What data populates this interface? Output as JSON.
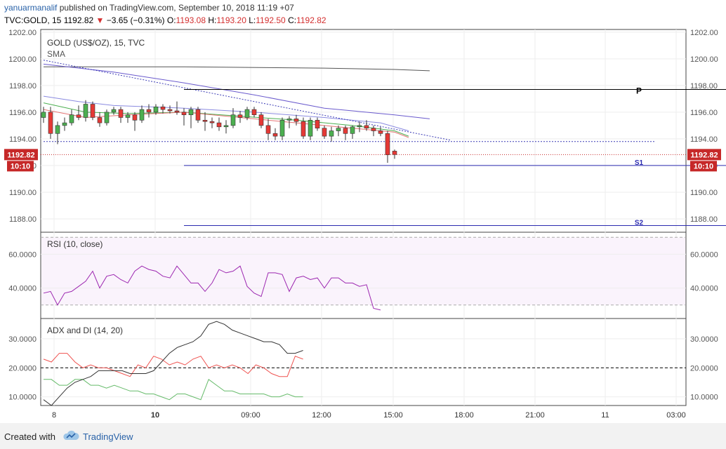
{
  "header": {
    "author": "yanuarmanalif",
    "published": "published on TradingView.com, September 10, 2018 11:19 +07",
    "symbol": "TVC:GOLD, 15",
    "last": "1192.82",
    "change": "−3.65 (−0.31%)",
    "o_label": "O:",
    "o": "1193.08",
    "h_label": "H:",
    "h": "1193.20",
    "l_label": "L:",
    "l": "1192.50",
    "c_label": "C:",
    "c": "1192.82"
  },
  "footer": {
    "created": "Created with",
    "brand": "TradingView"
  },
  "colors": {
    "up": "#4caf50",
    "down": "#e53935",
    "pivot": "#000000",
    "support": "#2b2bb0",
    "rsi": "#9c27b0",
    "adx": "#333333",
    "di_plus": "#66bb6a",
    "di_minus": "#ef5350",
    "price_label": "#c62828"
  },
  "chart_data": {
    "type": "candlestick",
    "title": "GOLD (US$/OZ), 15, TVC",
    "indicator_label": "SMA",
    "y_ticks": [
      "1202.00",
      "1200.00",
      "1198.00",
      "1196.00",
      "1194.00",
      "1192.00",
      "1190.00",
      "1188.00"
    ],
    "ylim": [
      1187.0,
      1202.2
    ],
    "x_ticks": [
      "8",
      "10",
      "09:00",
      "12:00",
      "15:00",
      "18:00",
      "21:00",
      "11",
      "03:00"
    ],
    "last_price": 1192.82,
    "last_price_label": "1192.82",
    "countdown": "10:10",
    "candles": [
      {
        "o": 1195.6,
        "h": 1196.4,
        "l": 1195.2,
        "c": 1196.0
      },
      {
        "o": 1196.0,
        "h": 1196.4,
        "l": 1194.0,
        "c": 1194.4
      },
      {
        "o": 1194.4,
        "h": 1195.3,
        "l": 1193.6,
        "c": 1195.0
      },
      {
        "o": 1195.0,
        "h": 1195.6,
        "l": 1194.6,
        "c": 1195.2
      },
      {
        "o": 1195.2,
        "h": 1196.2,
        "l": 1195.0,
        "c": 1195.8
      },
      {
        "o": 1195.8,
        "h": 1196.5,
        "l": 1195.4,
        "c": 1195.6
      },
      {
        "o": 1195.6,
        "h": 1196.9,
        "l": 1195.3,
        "c": 1196.6
      },
      {
        "o": 1196.6,
        "h": 1196.8,
        "l": 1195.4,
        "c": 1195.6
      },
      {
        "o": 1195.6,
        "h": 1196.0,
        "l": 1194.9,
        "c": 1195.2
      },
      {
        "o": 1195.2,
        "h": 1196.2,
        "l": 1195.0,
        "c": 1196.0
      },
      {
        "o": 1196.0,
        "h": 1196.4,
        "l": 1195.8,
        "c": 1196.2
      },
      {
        "o": 1196.2,
        "h": 1196.4,
        "l": 1195.2,
        "c": 1195.6
      },
      {
        "o": 1195.6,
        "h": 1196.0,
        "l": 1195.2,
        "c": 1195.8
      },
      {
        "o": 1195.8,
        "h": 1196.0,
        "l": 1194.6,
        "c": 1195.4
      },
      {
        "o": 1195.4,
        "h": 1196.5,
        "l": 1195.2,
        "c": 1196.2
      },
      {
        "o": 1196.2,
        "h": 1196.6,
        "l": 1195.6,
        "c": 1196.0
      },
      {
        "o": 1196.0,
        "h": 1196.6,
        "l": 1195.8,
        "c": 1196.4
      },
      {
        "o": 1196.4,
        "h": 1196.6,
        "l": 1195.9,
        "c": 1196.2
      },
      {
        "o": 1196.2,
        "h": 1196.5,
        "l": 1195.9,
        "c": 1196.1
      },
      {
        "o": 1196.1,
        "h": 1196.8,
        "l": 1195.8,
        "c": 1196.0
      },
      {
        "o": 1196.0,
        "h": 1196.3,
        "l": 1195.0,
        "c": 1195.8
      },
      {
        "o": 1195.8,
        "h": 1196.4,
        "l": 1194.8,
        "c": 1196.2
      },
      {
        "o": 1196.2,
        "h": 1196.4,
        "l": 1195.2,
        "c": 1195.4
      },
      {
        "o": 1195.4,
        "h": 1196.0,
        "l": 1194.6,
        "c": 1195.3
      },
      {
        "o": 1195.3,
        "h": 1195.6,
        "l": 1194.8,
        "c": 1195.2
      },
      {
        "o": 1195.2,
        "h": 1195.6,
        "l": 1194.6,
        "c": 1194.9
      },
      {
        "o": 1194.9,
        "h": 1195.4,
        "l": 1194.4,
        "c": 1195.0
      },
      {
        "o": 1195.0,
        "h": 1196.3,
        "l": 1194.8,
        "c": 1195.8
      },
      {
        "o": 1195.8,
        "h": 1196.1,
        "l": 1195.2,
        "c": 1195.6
      },
      {
        "o": 1195.6,
        "h": 1196.4,
        "l": 1195.4,
        "c": 1196.2
      },
      {
        "o": 1196.2,
        "h": 1196.4,
        "l": 1195.6,
        "c": 1195.8
      },
      {
        "o": 1195.8,
        "h": 1196.0,
        "l": 1194.8,
        "c": 1195.0
      },
      {
        "o": 1195.0,
        "h": 1195.5,
        "l": 1193.9,
        "c": 1194.4
      },
      {
        "o": 1194.4,
        "h": 1194.8,
        "l": 1193.9,
        "c": 1194.2
      },
      {
        "o": 1194.2,
        "h": 1195.6,
        "l": 1193.9,
        "c": 1195.4
      },
      {
        "o": 1195.4,
        "h": 1195.7,
        "l": 1194.8,
        "c": 1195.5
      },
      {
        "o": 1195.5,
        "h": 1195.8,
        "l": 1195.0,
        "c": 1195.3
      },
      {
        "o": 1195.3,
        "h": 1195.6,
        "l": 1194.0,
        "c": 1194.2
      },
      {
        "o": 1194.2,
        "h": 1195.6,
        "l": 1193.9,
        "c": 1195.4
      },
      {
        "o": 1195.4,
        "h": 1195.6,
        "l": 1194.6,
        "c": 1194.8
      },
      {
        "o": 1194.8,
        "h": 1195.0,
        "l": 1194.0,
        "c": 1194.2
      },
      {
        "o": 1194.2,
        "h": 1194.9,
        "l": 1193.8,
        "c": 1194.6
      },
      {
        "o": 1194.6,
        "h": 1195.0,
        "l": 1194.2,
        "c": 1194.8
      },
      {
        "o": 1194.8,
        "h": 1195.0,
        "l": 1193.9,
        "c": 1194.4
      },
      {
        "o": 1194.4,
        "h": 1195.0,
        "l": 1194.0,
        "c": 1194.9
      },
      {
        "o": 1194.9,
        "h": 1195.3,
        "l": 1194.5,
        "c": 1195.0
      },
      {
        "o": 1195.0,
        "h": 1195.4,
        "l": 1194.6,
        "c": 1194.8
      },
      {
        "o": 1194.8,
        "h": 1195.0,
        "l": 1194.2,
        "c": 1194.6
      },
      {
        "o": 1194.6,
        "h": 1194.9,
        "l": 1194.2,
        "c": 1194.4
      },
      {
        "o": 1194.4,
        "h": 1194.6,
        "l": 1192.2,
        "c": 1192.8
      },
      {
        "o": 1193.08,
        "h": 1193.2,
        "l": 1192.5,
        "c": 1192.82
      }
    ],
    "sma": [
      {
        "color": "#555555",
        "points": [
          [
            0,
            1199.4
          ],
          [
            20,
            1199.4
          ],
          [
            40,
            1199.3
          ],
          [
            50,
            1199.2
          ],
          [
            55,
            1199.1
          ]
        ]
      },
      {
        "color": "#6a5acd",
        "points": [
          [
            0,
            1199.6
          ],
          [
            10,
            1199.0
          ],
          [
            20,
            1198.2
          ],
          [
            30,
            1197.3
          ],
          [
            40,
            1196.3
          ],
          [
            50,
            1195.8
          ],
          [
            55,
            1195.5
          ]
        ]
      },
      {
        "color": "#8a8ae0",
        "points": [
          [
            0,
            1197.2
          ],
          [
            5,
            1196.8
          ],
          [
            10,
            1196.5
          ],
          [
            20,
            1196.3
          ],
          [
            30,
            1196.0
          ],
          [
            40,
            1195.6
          ],
          [
            48,
            1195.2
          ],
          [
            52,
            1194.6
          ]
        ]
      },
      {
        "color": "#4caf50",
        "points": [
          [
            0,
            1196.7
          ],
          [
            6,
            1196.0
          ],
          [
            12,
            1195.9
          ],
          [
            20,
            1196.0
          ],
          [
            28,
            1195.7
          ],
          [
            36,
            1195.4
          ],
          [
            44,
            1195.0
          ],
          [
            50,
            1194.6
          ],
          [
            52,
            1194.2
          ]
        ]
      },
      {
        "color": "#e57373",
        "points": [
          [
            0,
            1196.2
          ],
          [
            6,
            1195.6
          ],
          [
            12,
            1195.8
          ],
          [
            20,
            1196.0
          ],
          [
            28,
            1195.6
          ],
          [
            36,
            1195.2
          ],
          [
            44,
            1194.8
          ],
          [
            50,
            1194.5
          ],
          [
            52,
            1194.1
          ]
        ]
      }
    ],
    "trendline": {
      "x": [
        0,
        58
      ],
      "y": [
        1199.9,
        1193.9
      ]
    },
    "horizontal_lines": [
      {
        "label": "P",
        "value": 1197.7,
        "x": [
          20,
          100
        ]
      },
      {
        "label": "S1",
        "value": 1192.0,
        "x": [
          20,
          100
        ]
      },
      {
        "label": "S2",
        "value": 1187.5,
        "x": [
          20,
          100
        ]
      },
      {
        "label": "",
        "value": 1193.8,
        "x": [
          0,
          87
        ],
        "dotted": true
      }
    ],
    "rsi": {
      "label": "RSI (10, close)",
      "y_ticks": [
        "60.0000",
        "40.0000"
      ],
      "ylim": [
        22,
        73
      ],
      "bands": [
        70,
        30
      ],
      "values": [
        37,
        38,
        30,
        37,
        38,
        41,
        44,
        50,
        40,
        47,
        48,
        45,
        43,
        50,
        53,
        51,
        50,
        47,
        46,
        53,
        48,
        43,
        43,
        38,
        43,
        51,
        49,
        50,
        53,
        41,
        37,
        35,
        49,
        49,
        48,
        38,
        46,
        47,
        45,
        46,
        40,
        46,
        46,
        43,
        43,
        41,
        42,
        28,
        27
      ]
    },
    "adx": {
      "label": "ADX and DI (14, 20)",
      "y_ticks": [
        "30.0000",
        "20.0000",
        "10.0000"
      ],
      "ylim": [
        7,
        37
      ],
      "reference": 20,
      "adx": [
        9,
        7,
        10,
        13,
        15,
        16,
        17,
        19,
        19,
        19,
        19,
        18,
        18,
        18,
        19,
        22,
        25,
        27,
        28,
        29,
        31,
        35,
        36,
        35,
        33,
        32,
        31,
        30,
        29,
        29,
        28,
        25,
        25,
        26
      ],
      "di_plus": [
        16,
        16,
        14,
        14,
        16,
        16,
        14,
        14,
        13,
        14,
        13,
        12,
        12,
        11,
        11,
        10,
        9,
        11,
        11,
        10,
        9,
        16,
        14,
        12,
        12,
        11,
        11,
        11,
        11,
        10,
        10,
        11,
        10,
        10
      ],
      "di_minus": [
        23,
        22,
        25,
        25,
        22,
        20,
        21,
        20,
        20,
        19,
        18,
        17,
        21,
        20,
        24,
        23,
        21,
        22,
        21,
        23,
        24,
        20,
        21,
        20,
        21,
        20,
        18,
        21,
        20,
        18,
        17,
        17,
        24,
        23
      ]
    }
  }
}
